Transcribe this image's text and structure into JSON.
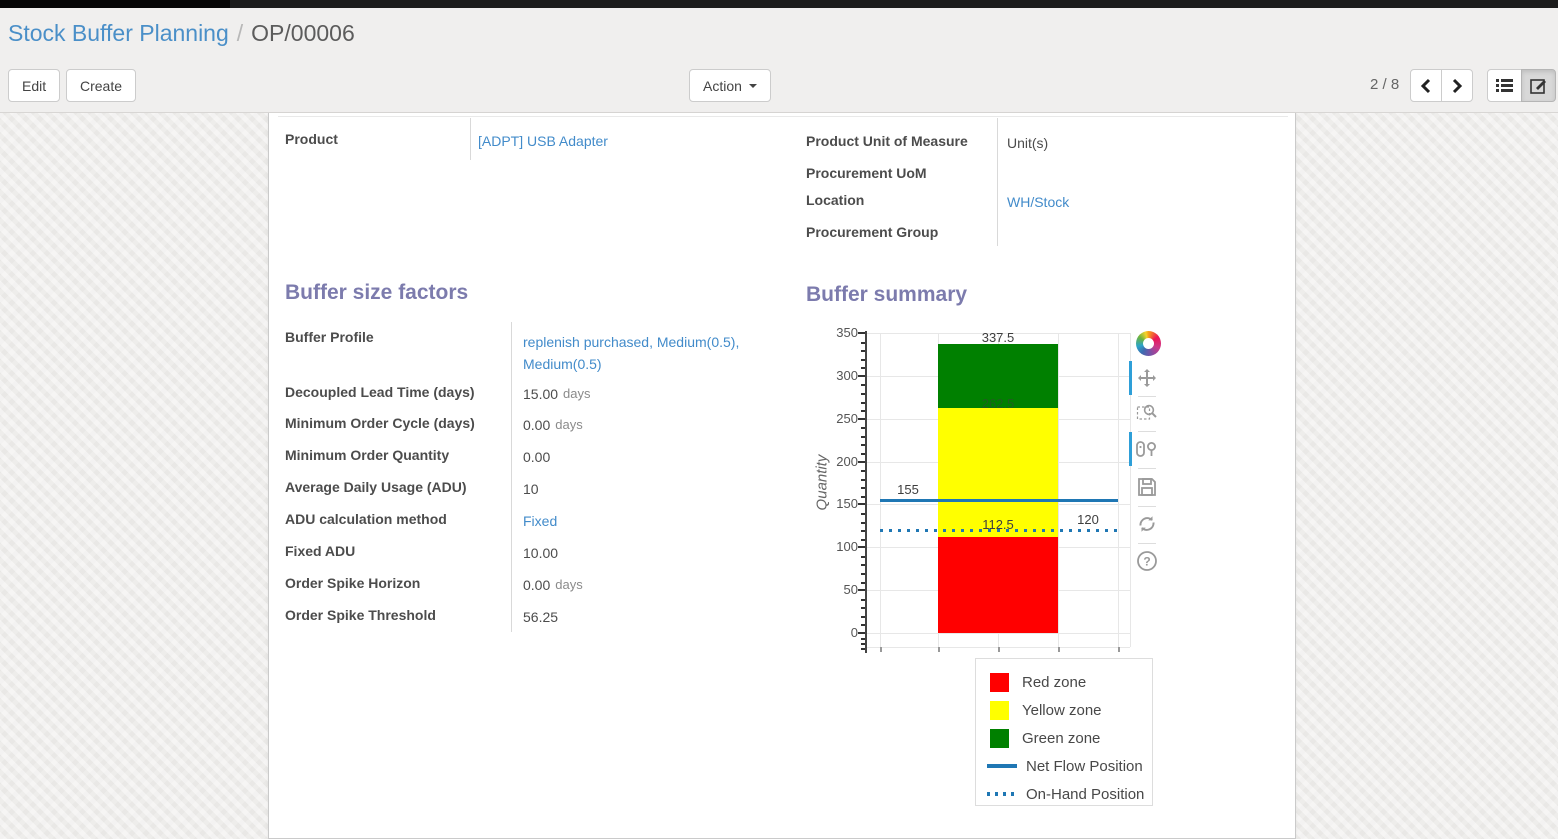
{
  "breadcrumb": {
    "section": "Stock Buffer Planning",
    "separator": "/",
    "record": "OP/00006"
  },
  "toolbar": {
    "edit_label": "Edit",
    "create_label": "Create",
    "action_label": "Action",
    "pager_value": "2 / 8"
  },
  "record_fields": {
    "left": [
      {
        "label": "Product",
        "value": "[ADPT] USB Adapter",
        "is_link": true
      }
    ],
    "right": [
      {
        "label": "Product Unit of Measure",
        "value": "Unit(s)",
        "is_link": false
      },
      {
        "label": "Procurement UoM",
        "value": "",
        "is_link": false
      },
      {
        "label": "Location",
        "value": "WH/Stock",
        "is_link": true
      },
      {
        "label": "Procurement Group",
        "value": "",
        "is_link": false
      }
    ]
  },
  "buffer_factors": {
    "title": "Buffer size factors",
    "rows": [
      {
        "label": "Buffer Profile",
        "value": "replenish purchased, Medium(0.5), Medium(0.5)",
        "is_link": true,
        "unit": ""
      },
      {
        "label": "Decoupled Lead Time (days)",
        "value": "15.00",
        "is_link": false,
        "unit": "days"
      },
      {
        "label": "Minimum Order Cycle (days)",
        "value": "0.00",
        "is_link": false,
        "unit": "days"
      },
      {
        "label": "Minimum Order Quantity",
        "value": "0.00",
        "is_link": false,
        "unit": ""
      },
      {
        "label": "Average Daily Usage (ADU)",
        "value": "10",
        "is_link": false,
        "unit": ""
      },
      {
        "label": "ADU calculation method",
        "value": "Fixed",
        "is_link": true,
        "unit": ""
      },
      {
        "label": "Fixed ADU",
        "value": "10.00",
        "is_link": false,
        "unit": ""
      },
      {
        "label": "Order Spike Horizon",
        "value": "0.00",
        "is_link": false,
        "unit": "days"
      },
      {
        "label": "Order Spike Threshold",
        "value": "56.25",
        "is_link": false,
        "unit": ""
      }
    ]
  },
  "buffer_summary": {
    "title": "Buffer summary"
  },
  "chart_data": {
    "type": "bar",
    "title": "",
    "xlabel": "",
    "ylabel": "Quantity",
    "ylim": [
      0,
      350
    ],
    "ytick_step": 50,
    "ytick_labels": [
      "0",
      "50",
      "100",
      "150",
      "200",
      "250",
      "300",
      "350"
    ],
    "grid": true,
    "zones": [
      {
        "name": "Red zone",
        "from": 0,
        "to": 112.5,
        "color": "#ff0000",
        "boundary_label": "112.5"
      },
      {
        "name": "Yellow zone",
        "from": 112.5,
        "to": 262.5,
        "color": "#ffff00",
        "boundary_label": "262.5"
      },
      {
        "name": "Green zone",
        "from": 262.5,
        "to": 337.5,
        "color": "#008000",
        "boundary_label": "337.5"
      }
    ],
    "lines": [
      {
        "name": "Net Flow Position",
        "value": 155,
        "style": "solid",
        "color": "#1f77b4",
        "label": "155",
        "label_side": "left"
      },
      {
        "name": "On-Hand Position",
        "value": 120,
        "style": "dotted",
        "color": "#1f77b4",
        "label": "120",
        "label_side": "right"
      }
    ],
    "legend": [
      "Red zone",
      "Yellow zone",
      "Green zone",
      "Net Flow Position",
      "On-Hand Position"
    ],
    "legend_position": "bottom-right"
  },
  "modebar": {
    "icons": [
      "plotly-logo",
      "pan",
      "box-zoom",
      "hover-tools",
      "save",
      "reset-axes",
      "help"
    ]
  }
}
